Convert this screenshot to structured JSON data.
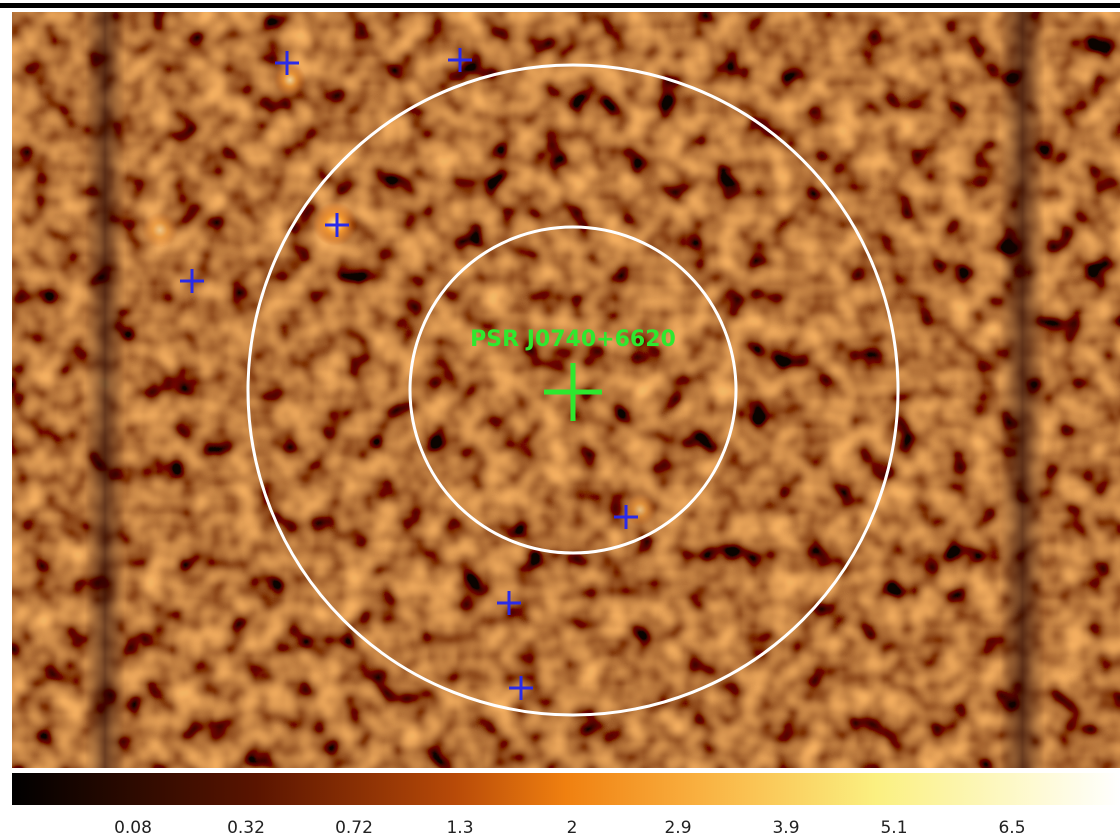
{
  "source_label": "PSR J0740+6620",
  "colorbar": {
    "ticks": [
      0.08,
      0.32,
      0.72,
      1.3,
      2,
      2.9,
      3.9,
      5.1,
      6.5
    ]
  }
}
